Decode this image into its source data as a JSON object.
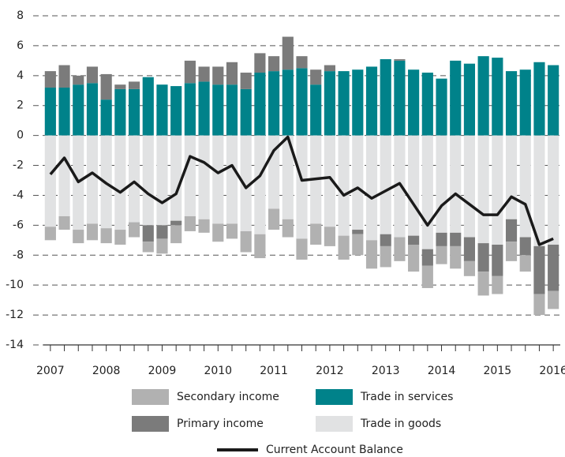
{
  "chart_data": {
    "type": "bar",
    "categories": [
      "2007",
      null,
      null,
      null,
      "2008",
      null,
      null,
      null,
      "2009",
      null,
      null,
      null,
      "2010",
      null,
      null,
      null,
      "2011",
      null,
      null,
      null,
      "2012",
      null,
      null,
      null,
      "2013",
      null,
      null,
      null,
      "2014",
      null,
      null,
      null,
      "2015",
      null,
      null,
      null,
      "2016"
    ],
    "ylim": [
      -14,
      8
    ],
    "yticks": [
      -14,
      -12,
      -10,
      -8,
      -6,
      -4,
      -2,
      0,
      2,
      4,
      6,
      8
    ],
    "grid": true,
    "stacked": true,
    "series": [
      {
        "name": "Secondary income",
        "color": "#b1b1b1",
        "values": [
          -0.9,
          -0.9,
          -0.9,
          -1.1,
          -1.0,
          -1.0,
          -1.0,
          -0.7,
          -1.0,
          -1.2,
          -1.0,
          -0.9,
          -1.2,
          -1.0,
          -1.4,
          -1.6,
          -1.4,
          -1.2,
          -1.4,
          -1.4,
          -1.3,
          -1.6,
          -1.4,
          -1.9,
          -1.4,
          -1.6,
          -1.8,
          -1.5,
          -1.2,
          -1.5,
          -1.0,
          -1.6,
          -1.2,
          -1.3,
          -1.1,
          -1.4,
          -1.2
        ]
      },
      {
        "name": "Trade in services",
        "color": "#00828a",
        "values": [
          3.2,
          3.2,
          3.4,
          3.5,
          2.4,
          3.1,
          3.1,
          3.9,
          3.4,
          3.3,
          3.5,
          3.6,
          3.4,
          3.4,
          3.1,
          4.2,
          4.3,
          4.4,
          4.5,
          3.4,
          4.3,
          4.3,
          4.4,
          4.6,
          5.1,
          5.0,
          4.4,
          4.2,
          3.8,
          5.0,
          4.8,
          5.3,
          5.2,
          4.3,
          4.4,
          4.9,
          4.7
        ]
      },
      {
        "name": "Primary income",
        "color": "#7b7b7b",
        "values": [
          1.1,
          1.5,
          0.6,
          1.1,
          1.7,
          0.3,
          0.5,
          -1.1,
          -0.9,
          -0.3,
          1.5,
          1.0,
          1.2,
          1.5,
          1.1,
          1.3,
          1.0,
          2.2,
          0.8,
          1.0,
          0.4,
          0,
          -0.3,
          0,
          -0.8,
          0.1,
          -0.6,
          -1.1,
          -0.9,
          -0.9,
          -1.6,
          -1.9,
          -2.1,
          -1.5,
          -1.2,
          -3.2,
          -3.1
        ]
      },
      {
        "name": "Trade in goods",
        "color": "#e1e2e3",
        "values": [
          -6.1,
          -5.4,
          -6.3,
          -5.9,
          -6.2,
          -6.3,
          -5.8,
          -6.0,
          -6.0,
          -5.7,
          -5.4,
          -5.6,
          -5.9,
          -5.9,
          -6.4,
          -6.6,
          -4.9,
          -5.6,
          -6.9,
          -5.9,
          -6.1,
          -6.7,
          -6.3,
          -7.0,
          -6.6,
          -6.8,
          -6.7,
          -7.6,
          -6.5,
          -6.5,
          -6.8,
          -7.2,
          -7.3,
          -5.6,
          -6.8,
          -7.4,
          -7.3
        ]
      },
      {
        "name": "Current Account Balance",
        "type": "line",
        "color": "#1a1a1a",
        "values": [
          -2.6,
          -1.5,
          -3.1,
          -2.5,
          -3.2,
          -3.8,
          -3.1,
          -3.9,
          -4.5,
          -3.9,
          -1.4,
          -1.8,
          -2.5,
          -2.0,
          -3.5,
          -2.7,
          -1.0,
          -0.1,
          -3.0,
          -2.9,
          -2.8,
          -4.0,
          -3.5,
          -4.2,
          -3.7,
          -3.2,
          -4.6,
          -6.0,
          -4.7,
          -3.9,
          -4.6,
          -5.3,
          -5.3,
          -4.1,
          -4.6,
          -7.3,
          -6.9
        ]
      }
    ]
  }
}
